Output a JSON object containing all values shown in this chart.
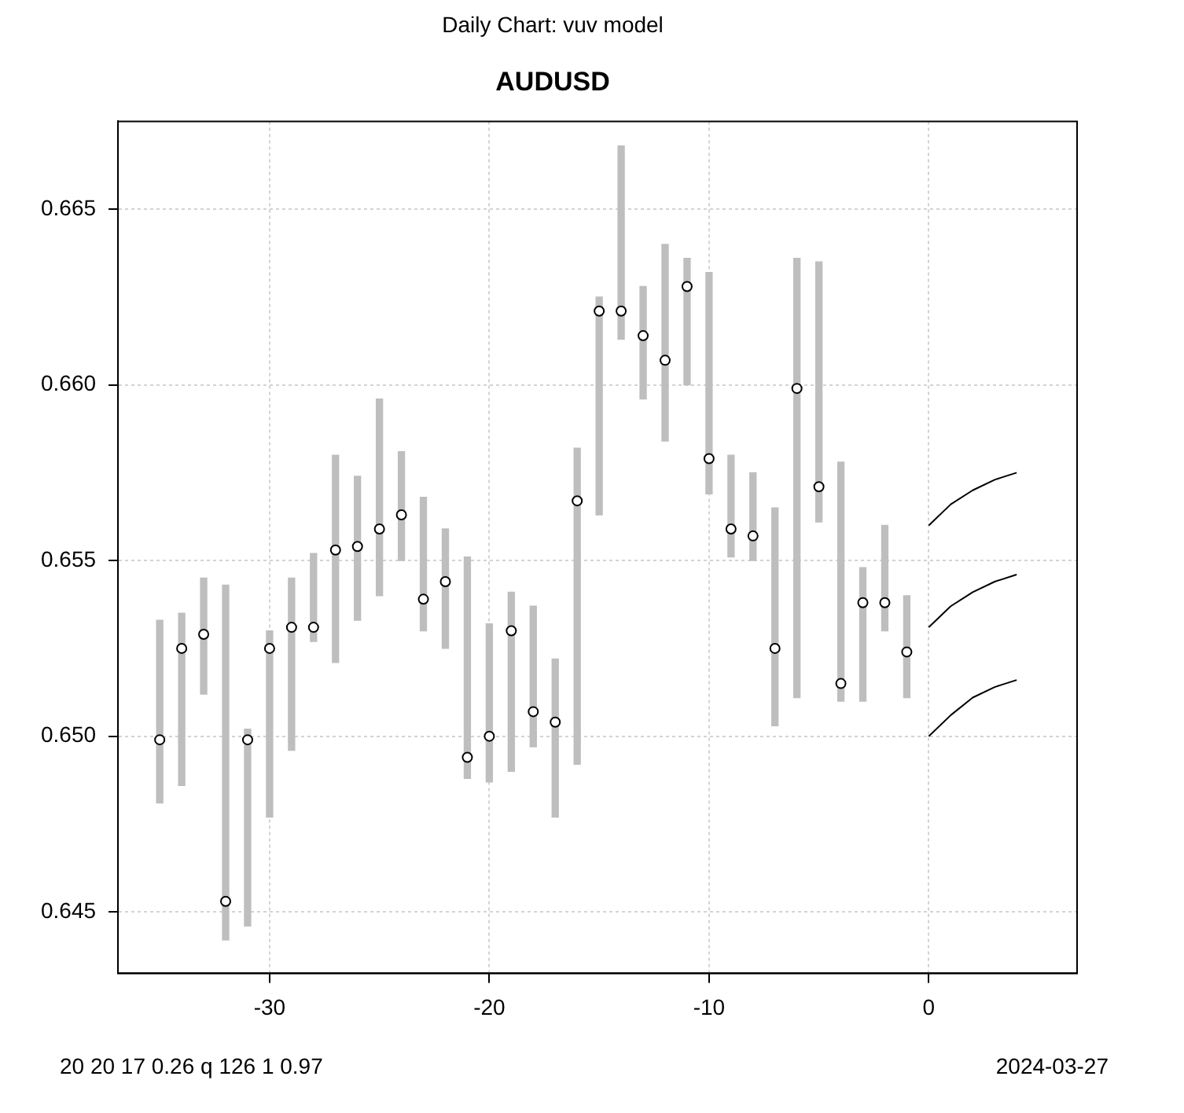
{
  "chart_data": {
    "type": "bar",
    "title": "Daily Chart: vuv model",
    "subtitle": "AUDUSD",
    "xlim": [
      -36.9,
      6.75
    ],
    "xticks": [
      -30,
      -20,
      -10,
      0
    ],
    "ylim": [
      0.64325,
      0.6675
    ],
    "yticks": [
      {
        "value": 0.645,
        "label": "0.645"
      },
      {
        "value": 0.65,
        "label": "0.650"
      },
      {
        "value": 0.655,
        "label": "0.655"
      },
      {
        "value": 0.66,
        "label": "0.660"
      },
      {
        "value": 0.665,
        "label": "0.665"
      }
    ],
    "grid": true,
    "legend": false,
    "series": [
      {
        "color": "#bebebe",
        "x": [
          -35,
          -34,
          -33,
          -32,
          -31,
          -30,
          -29,
          -28,
          -27,
          -26,
          -25,
          -24,
          -23,
          -22,
          -21,
          -20,
          -19,
          -18,
          -17,
          -16,
          -15,
          -14,
          -13,
          -12,
          -11,
          -10,
          -9,
          -8,
          -7,
          -6,
          -5,
          -4,
          -3,
          -2,
          -1
        ],
        "base": [
          0.6481,
          0.6486,
          0.6512,
          0.6442,
          0.6446,
          0.6477,
          0.6496,
          0.6527,
          0.6521,
          0.6533,
          0.654,
          0.655,
          0.653,
          0.6525,
          0.6488,
          0.6487,
          0.649,
          0.6497,
          0.6477,
          0.6492,
          0.6563,
          0.6613,
          0.6596,
          0.6584,
          0.66,
          0.6569,
          0.6551,
          0.655,
          0.6503,
          0.6511,
          0.6561,
          0.651,
          0.651,
          0.653,
          0.6511
        ],
        "values": [
          0.0052,
          0.0049,
          0.0033,
          0.0101,
          0.0056,
          0.0053,
          0.0049,
          0.0025,
          0.0059,
          0.0041,
          0.0056,
          0.0031,
          0.0038,
          0.0034,
          0.0063,
          0.0045,
          0.0051,
          0.004,
          0.0045,
          0.009,
          0.0062,
          0.0055,
          0.0032,
          0.0056,
          0.0036,
          0.0063,
          0.0029,
          0.0025,
          0.0062,
          0.0125,
          0.0074,
          0.0068,
          0.0038,
          0.003,
          0.0029
        ]
      },
      {
        "type": "scatter",
        "color": "#000000",
        "marker": "circle",
        "x": [
          -35,
          -34,
          -33,
          -32,
          -31,
          -30,
          -29,
          -28,
          -27,
          -26,
          -25,
          -24,
          -23,
          -22,
          -21,
          -20,
          -19,
          -18,
          -17,
          -16,
          -15,
          -14,
          -13,
          -12,
          -11,
          -10,
          -9,
          -8,
          -7,
          -6,
          -5,
          -4,
          -3,
          -2,
          -1
        ],
        "values": [
          0.6499,
          0.6525,
          0.6529,
          0.6453,
          0.6499,
          0.6525,
          0.6531,
          0.6531,
          0.6553,
          0.6554,
          0.6559,
          0.6563,
          0.6539,
          0.6544,
          0.6494,
          0.65,
          0.653,
          0.6507,
          0.6504,
          0.6567,
          0.6621,
          0.6621,
          0.6614,
          0.6607,
          0.6628,
          0.6579,
          0.6559,
          0.6557,
          0.6525,
          0.6599,
          0.6571,
          0.6515,
          0.6538,
          0.6538,
          0.6524
        ]
      },
      {
        "type": "line",
        "color": "#000000",
        "marker": "none",
        "line_style": "solid",
        "x": [
          0,
          1,
          2,
          3,
          4
        ],
        "values": [
          0.656,
          0.6566,
          0.657,
          0.6573,
          0.6575
        ]
      },
      {
        "type": "line",
        "color": "#000000",
        "marker": "none",
        "line_style": "solid",
        "x": [
          0,
          1,
          2,
          3,
          4
        ],
        "values": [
          0.6531,
          0.6537,
          0.6541,
          0.6544,
          0.6546
        ]
      },
      {
        "type": "line",
        "color": "#000000",
        "marker": "none",
        "line_style": "solid",
        "x": [
          0,
          1,
          2,
          3,
          4
        ],
        "values": [
          0.65,
          0.6506,
          0.6511,
          0.6514,
          0.6516
        ]
      }
    ],
    "annotations": [
      "20 20 17 0.26 q 126 1 0.97",
      "2024-03-27"
    ]
  }
}
